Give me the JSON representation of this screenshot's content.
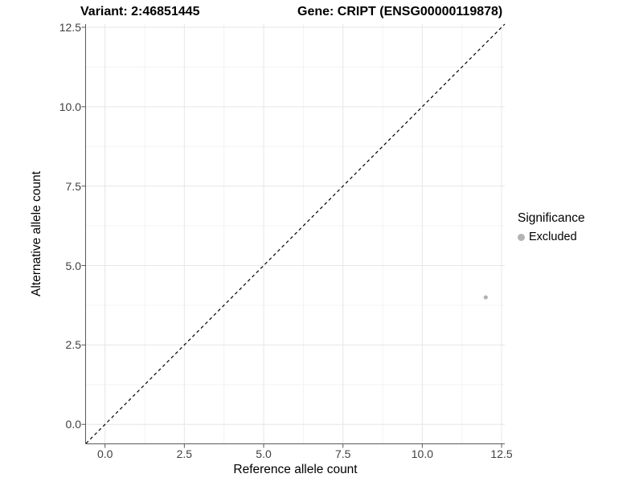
{
  "title": {
    "variant": "Variant: 2:46851445",
    "gene": "Gene: CRIPT (ENSG00000119878)"
  },
  "axes": {
    "x_title": "Reference allele count",
    "y_title": "Alternative allele count"
  },
  "legend": {
    "title": "Significance",
    "items": [
      {
        "label": "Excluded",
        "color": "#b3b3b3"
      }
    ]
  },
  "colors": {
    "background": "#ffffff",
    "axis_line": "#595959",
    "tick_mark": "#595959",
    "tick_text": "#404040",
    "grid_major": "#e6e6e6",
    "grid_minor": "#f3f3f3",
    "identity_line": "#000000",
    "point": "#b3b3b3"
  },
  "chart_data": {
    "type": "scatter",
    "title": "Variant: 2:46851445   Gene: CRIPT (ENSG00000119878)",
    "xlabel": "Reference allele count",
    "ylabel": "Alternative allele count",
    "xlim": [
      -0.6,
      12.6
    ],
    "ylim": [
      -0.6,
      12.6
    ],
    "x_ticks": [
      0,
      2.5,
      5,
      7.5,
      10,
      12.5
    ],
    "x_tick_labels": [
      "0.0",
      "2.5",
      "5.0",
      "7.5",
      "10.0",
      "12.5"
    ],
    "y_ticks": [
      0,
      2.5,
      5,
      7.5,
      10,
      12.5
    ],
    "y_tick_labels": [
      "0.0",
      "2.5",
      "5.0",
      "7.5",
      "10.0",
      "12.5"
    ],
    "x_minor_ticks": [
      1.25,
      3.75,
      6.25,
      8.75,
      11.25
    ],
    "y_minor_ticks": [
      1.25,
      3.75,
      6.25,
      8.75,
      11.25
    ],
    "grid": true,
    "legend_position": "right",
    "legend_title": "Significance",
    "reference_line": {
      "kind": "identity",
      "slope": 1,
      "intercept": 0,
      "style": "dashed"
    },
    "series": [
      {
        "name": "Excluded",
        "color": "#b3b3b3",
        "points": [
          {
            "x": 12,
            "y": 4
          }
        ]
      }
    ]
  }
}
